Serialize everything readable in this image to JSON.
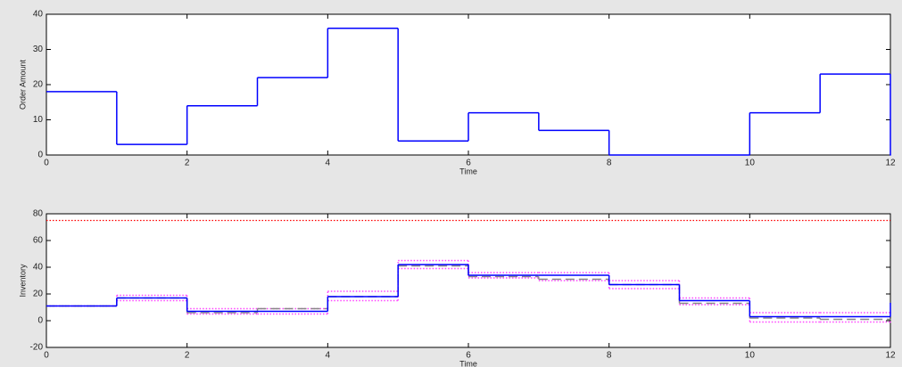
{
  "chart_data": [
    {
      "type": "step",
      "ylabel": "Order Amount",
      "xlabel": "Time",
      "x": [
        0,
        1,
        2,
        3,
        4,
        5,
        6,
        7,
        8,
        9,
        10,
        11,
        12
      ],
      "xlim": [
        0,
        12
      ],
      "xticks": [
        0,
        2,
        4,
        6,
        8,
        10,
        12
      ],
      "ylim": [
        0,
        40
      ],
      "yticks": [
        0,
        10,
        20,
        30,
        40
      ],
      "series": [
        {
          "color": "#0000ff",
          "style": "solid",
          "values": [
            18,
            3,
            14,
            22,
            36,
            4,
            12,
            7,
            0,
            0,
            12,
            23,
            0
          ]
        }
      ]
    },
    {
      "type": "step",
      "ylabel": "Inventory",
      "xlabel": "Time",
      "x": [
        0,
        1,
        2,
        3,
        4,
        5,
        6,
        7,
        8,
        9,
        10,
        11,
        12
      ],
      "xlim": [
        0,
        12
      ],
      "xticks": [
        0,
        2,
        4,
        6,
        8,
        10,
        12
      ],
      "ylim": [
        -20,
        80
      ],
      "yticks": [
        -20,
        0,
        20,
        40,
        60,
        80
      ],
      "hlines": [
        {
          "value": 75,
          "color": "#ff0000",
          "style": "dotted"
        }
      ],
      "series": [
        {
          "color": "#ff44ff",
          "style": "dotted",
          "values": [
            11,
            19,
            9,
            9,
            22,
            45,
            36,
            36,
            30,
            17,
            6,
            6,
            6
          ]
        },
        {
          "color": "#ff44ff",
          "style": "dotted",
          "values": [
            11,
            15,
            5,
            5,
            15,
            39,
            32,
            30,
            24,
            12,
            -1,
            -1,
            -1
          ]
        },
        {
          "color": "#888888",
          "style": "dashed",
          "values": [
            11,
            17,
            6,
            9,
            18,
            41,
            33,
            31,
            27,
            13,
            2,
            1,
            1
          ]
        },
        {
          "color": "#0000ff",
          "style": "solid",
          "values": [
            11,
            17,
            7,
            7,
            18,
            42,
            34,
            34,
            27,
            15,
            3,
            3,
            13
          ]
        }
      ]
    }
  ]
}
